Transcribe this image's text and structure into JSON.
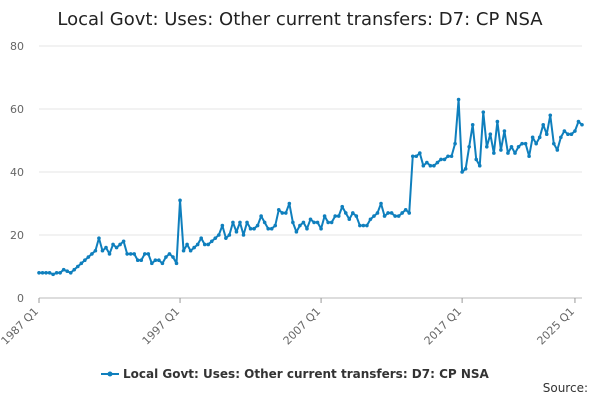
{
  "chart_data": {
    "type": "line",
    "title": "Local Govt: Uses: Other current transfers: D7: CP NSA",
    "xlabel": "",
    "ylabel": "",
    "ylim": [
      0,
      80
    ],
    "yticks": [
      0,
      20,
      40,
      60,
      80
    ],
    "x_tick_labels": [
      "1987 Q1",
      "1997 Q1",
      "2007 Q1",
      "2017 Q1",
      "2025 Q1"
    ],
    "x_tick_quarter_index": [
      0,
      40,
      80,
      120,
      152
    ],
    "grid": "horizontal",
    "legend_position": "bottom",
    "series": [
      {
        "name": "Local Govt: Uses: Other current transfers: D7: CP NSA",
        "color": "#0f7fbd",
        "x_start": "1987 Q1",
        "frequency": "quarterly",
        "values": [
          8,
          8,
          8,
          8,
          7.5,
          8,
          8,
          9,
          8.5,
          8,
          9,
          10,
          11,
          12,
          13,
          14,
          15,
          19,
          15,
          16,
          14,
          17,
          16,
          17,
          18,
          14,
          14,
          14,
          12,
          12,
          14,
          14,
          11,
          12,
          12,
          11,
          13,
          14,
          13,
          11,
          31,
          15,
          17,
          15,
          16,
          17,
          19,
          17,
          17,
          18,
          19,
          20,
          23,
          19,
          20,
          24,
          21,
          24,
          20,
          24,
          22,
          22,
          23,
          26,
          24,
          22,
          22,
          23,
          28,
          27,
          27,
          30,
          24,
          21,
          23,
          24,
          22,
          25,
          24,
          24,
          22,
          26,
          24,
          24,
          26,
          26,
          29,
          27,
          25,
          27,
          26,
          23,
          23,
          23,
          25,
          26,
          27,
          30,
          26,
          27,
          27,
          26,
          26,
          27,
          28,
          27,
          45,
          45,
          46,
          42,
          43,
          42,
          42,
          43,
          44,
          44,
          45,
          45,
          49,
          63,
          40,
          41,
          48,
          55,
          44,
          42,
          59,
          48,
          52,
          46,
          56,
          47,
          53,
          46,
          48,
          46,
          48,
          49,
          49,
          45,
          51,
          49,
          51,
          55,
          52,
          58,
          49,
          47,
          51,
          53,
          52,
          52,
          53,
          56,
          55
        ]
      }
    ],
    "source_label": "Source:"
  }
}
